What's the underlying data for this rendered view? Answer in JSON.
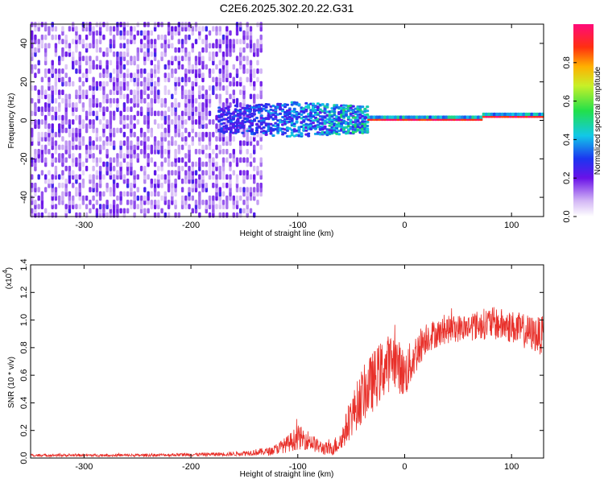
{
  "title": "C2E6.2025.302.20.22.G31",
  "colors": {
    "trace": "#e8302a",
    "axis": "#000000",
    "background": "#ffffff"
  },
  "chart_data": [
    {
      "type": "heatmap",
      "name": "spectrogram",
      "xlabel": "Height of straight line (km)",
      "ylabel": "Frequency (Hz)",
      "xlim": [
        -350,
        130
      ],
      "ylim": [
        -50,
        50
      ],
      "xticks": [
        -300,
        -200,
        -100,
        0,
        100
      ],
      "yticks": [
        -40,
        -20,
        0,
        20,
        40
      ],
      "colorbar": {
        "label": "Normalized spectral amplitude",
        "range": [
          0,
          1
        ],
        "ticks": [
          "0.0",
          "0.2",
          "0.4",
          "0.6",
          "0.8"
        ],
        "tick_values": [
          0.0,
          0.2,
          0.4,
          0.6,
          0.8
        ],
        "colormap": "rainbow (white-violet-blue-cyan-green-yellow-red-magenta)"
      },
      "regions": [
        {
          "description": "broadband noise",
          "x_range": [
            -350,
            -135
          ],
          "freq_range": [
            -50,
            50
          ],
          "amplitude": [
            0.05,
            0.2
          ]
        },
        {
          "description": "signal band",
          "x_range": [
            -175,
            -35
          ],
          "freq_center": 0,
          "freq_width": 15,
          "amplitude": [
            0.2,
            0.45
          ]
        },
        {
          "description": "tracked carrier",
          "x_range": [
            -35,
            130
          ],
          "freq_center": 0,
          "freq_width": 3,
          "amplitude": [
            0.85,
            1.0
          ]
        }
      ]
    },
    {
      "type": "line",
      "name": "snr",
      "xlabel": "Height of straight line (km)",
      "ylabel": "SNR (10 * v/v)",
      "scale_label": "(x10",
      "scale_exponent": "4",
      "xlim": [
        -350,
        130
      ],
      "ylim": [
        0,
        1.4
      ],
      "xticks": [
        -300,
        -200,
        -100,
        0,
        100
      ],
      "yticks": [
        "0.0",
        "0.2",
        "0.4",
        "0.6",
        "0.8",
        "1.0",
        "1.2",
        "1.4"
      ],
      "ytick_values": [
        0.0,
        0.2,
        0.4,
        0.6,
        0.8,
        1.0,
        1.2,
        1.4
      ],
      "series": [
        {
          "name": "SNR",
          "color": "#e8302a",
          "x": [
            -350,
            -300,
            -250,
            -200,
            -160,
            -125,
            -110,
            -100,
            -90,
            -80,
            -70,
            -60,
            -50,
            -40,
            -30,
            -20,
            -10,
            0,
            10,
            20,
            30,
            40,
            60,
            80,
            100,
            120,
            130
          ],
          "y": [
            0.02,
            0.02,
            0.02,
            0.025,
            0.03,
            0.05,
            0.1,
            0.15,
            0.13,
            0.08,
            0.06,
            0.12,
            0.3,
            0.45,
            0.55,
            0.65,
            0.72,
            0.6,
            0.75,
            0.88,
            0.9,
            0.93,
            0.95,
            0.98,
            0.95,
            0.9,
            0.88
          ],
          "spread": [
            0.01,
            0.01,
            0.01,
            0.012,
            0.015,
            0.03,
            0.06,
            0.09,
            0.07,
            0.05,
            0.05,
            0.08,
            0.15,
            0.2,
            0.22,
            0.22,
            0.2,
            0.18,
            0.15,
            0.12,
            0.1,
            0.1,
            0.1,
            0.12,
            0.12,
            0.13,
            0.14
          ]
        }
      ]
    }
  ]
}
